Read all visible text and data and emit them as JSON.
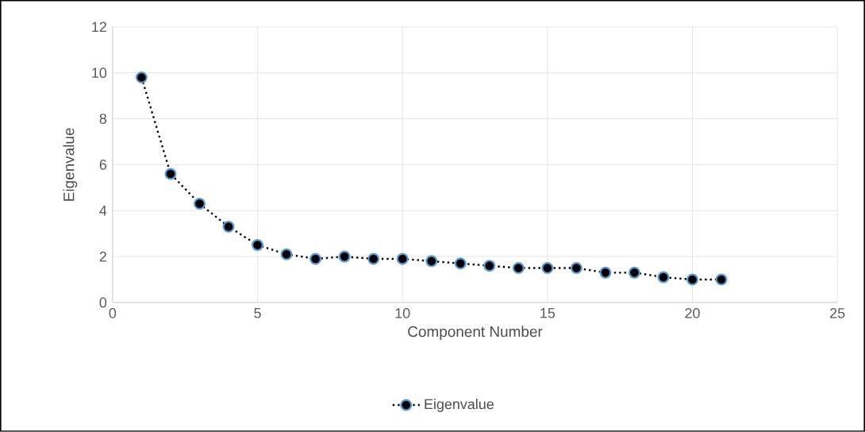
{
  "chart_data": {
    "type": "line",
    "xlabel": "Component Number",
    "ylabel": "Eigenvalue",
    "x": [
      1,
      2,
      3,
      4,
      5,
      6,
      7,
      8,
      9,
      10,
      11,
      12,
      13,
      14,
      15,
      16,
      17,
      18,
      19,
      20,
      21
    ],
    "series": [
      {
        "name": "Eigenvalue",
        "color": "#000000",
        "values": [
          9.8,
          5.6,
          4.3,
          3.3,
          2.5,
          2.1,
          1.9,
          2.0,
          1.9,
          1.9,
          1.8,
          1.7,
          1.6,
          1.5,
          1.5,
          1.5,
          1.3,
          1.3,
          1.1,
          1.0,
          1.0
        ]
      }
    ],
    "xlim": [
      0,
      25
    ],
    "ylim": [
      0,
      12
    ],
    "xticks": [
      0,
      5,
      10,
      15,
      20,
      25
    ],
    "yticks": [
      0,
      2,
      4,
      6,
      8,
      10,
      12
    ],
    "grid": true,
    "legend": "bottom",
    "marker": "circle",
    "line_style": "dotted"
  }
}
